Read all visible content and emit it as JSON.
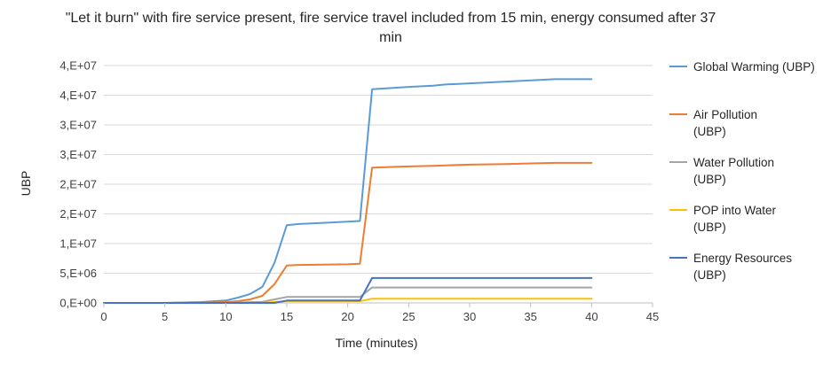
{
  "chart_data": {
    "type": "line",
    "title": "\"Let it burn\" with fire service present, fire service travel included from 15 min, energy consumed after 37 min",
    "xlabel": "Time (minutes)",
    "ylabel": "UBP",
    "xlim": [
      0,
      45
    ],
    "x_ticks": [
      0,
      5,
      10,
      15,
      20,
      25,
      30,
      35,
      40,
      45
    ],
    "ylim": [
      0,
      40000000
    ],
    "y_ticks": [
      {
        "value": 0,
        "label": "0,E+00"
      },
      {
        "value": 5000000,
        "label": "5,E+06"
      },
      {
        "value": 10000000,
        "label": "1,E+07"
      },
      {
        "value": 15000000,
        "label": "2,E+07"
      },
      {
        "value": 20000000,
        "label": "2,E+07"
      },
      {
        "value": 25000000,
        "label": "3,E+07"
      },
      {
        "value": 30000000,
        "label": "3,E+07"
      },
      {
        "value": 35000000,
        "label": "4,E+07"
      },
      {
        "value": 40000000,
        "label": "4,E+07"
      }
    ],
    "grid": true,
    "legend_position": "right",
    "series": [
      {
        "name": "Global Warming (UBP)",
        "color": "#5B9BD5",
        "points": [
          [
            0,
            0
          ],
          [
            5,
            0
          ],
          [
            8,
            150000
          ],
          [
            10,
            400000
          ],
          [
            11,
            900000
          ],
          [
            12,
            1500000
          ],
          [
            13,
            2700000
          ],
          [
            14,
            6800000
          ],
          [
            15,
            13100000
          ],
          [
            16,
            13300000
          ],
          [
            18,
            13500000
          ],
          [
            20,
            13700000
          ],
          [
            21,
            13800000
          ],
          [
            22,
            36000000
          ],
          [
            25,
            36400000
          ],
          [
            27,
            36600000
          ],
          [
            28,
            36800000
          ],
          [
            30,
            37000000
          ],
          [
            33,
            37300000
          ],
          [
            35,
            37500000
          ],
          [
            37,
            37700000
          ],
          [
            40,
            37700000
          ]
        ]
      },
      {
        "name": "Air Pollution (UBP)",
        "color": "#ED7D31",
        "points": [
          [
            0,
            0
          ],
          [
            5,
            0
          ],
          [
            8,
            50000
          ],
          [
            10,
            150000
          ],
          [
            11,
            300000
          ],
          [
            12,
            600000
          ],
          [
            13,
            1200000
          ],
          [
            14,
            3200000
          ],
          [
            15,
            6300000
          ],
          [
            16,
            6400000
          ],
          [
            18,
            6450000
          ],
          [
            20,
            6500000
          ],
          [
            21,
            6600000
          ],
          [
            22,
            22800000
          ],
          [
            25,
            23000000
          ],
          [
            27,
            23100000
          ],
          [
            30,
            23300000
          ],
          [
            33,
            23400000
          ],
          [
            35,
            23500000
          ],
          [
            37,
            23600000
          ],
          [
            40,
            23600000
          ]
        ]
      },
      {
        "name": "Water Pollution (UBP)",
        "color": "#A5A5A5",
        "points": [
          [
            0,
            0
          ],
          [
            10,
            0
          ],
          [
            13,
            200000
          ],
          [
            14,
            600000
          ],
          [
            15,
            1000000
          ],
          [
            21,
            1000000
          ],
          [
            22,
            2600000
          ],
          [
            40,
            2600000
          ]
        ]
      },
      {
        "name": "POP into Water (UBP)",
        "color": "#FFC000",
        "points": [
          [
            0,
            0
          ],
          [
            13,
            0
          ],
          [
            15,
            300000
          ],
          [
            21,
            300000
          ],
          [
            22,
            700000
          ],
          [
            40,
            700000
          ]
        ]
      },
      {
        "name": "Energy Resources (UBP)",
        "color": "#4472C4",
        "points": [
          [
            0,
            0
          ],
          [
            14,
            0
          ],
          [
            15,
            400000
          ],
          [
            21,
            400000
          ],
          [
            22,
            4200000
          ],
          [
            40,
            4200000
          ]
        ]
      }
    ]
  },
  "legend": {
    "items": [
      {
        "line1": "Global Warming (UBP)",
        "line2": ""
      },
      {
        "line1": "Air Pollution",
        "line2": "(UBP)"
      },
      {
        "line1": "Water Pollution",
        "line2": "(UBP)"
      },
      {
        "line1": "POP into Water",
        "line2": "(UBP)"
      },
      {
        "line1": "Energy Resources",
        "line2": "(UBP)"
      }
    ]
  }
}
